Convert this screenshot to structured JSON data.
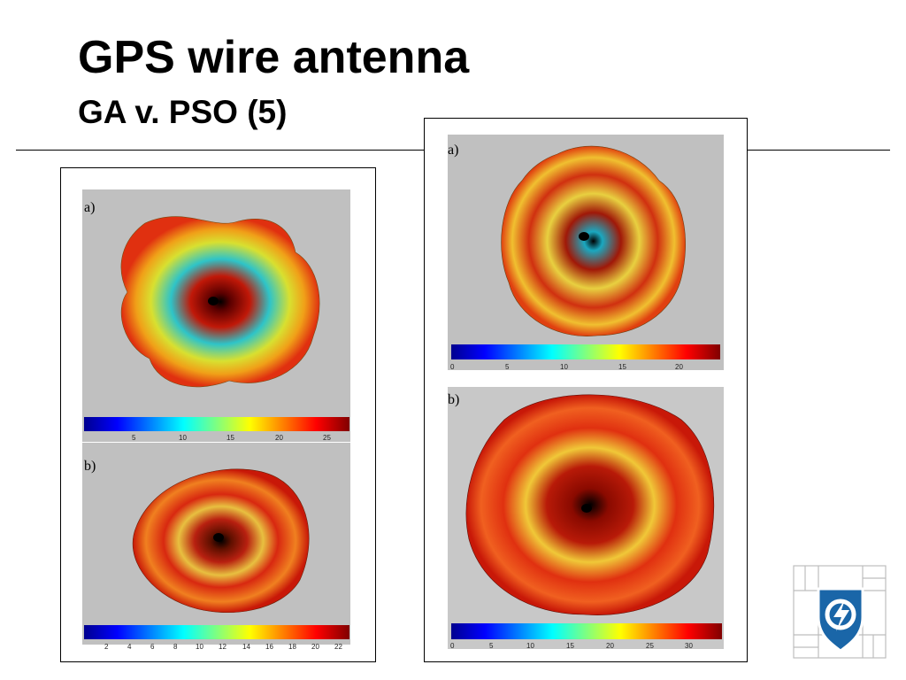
{
  "slide": {
    "title": "GPS wire antenna",
    "subtitle": "GA v. PSO (5)"
  },
  "left_figure": {
    "panel_a": {
      "label": "a)",
      "colorbar_ticks": [
        "5",
        "10",
        "15",
        "20",
        "25"
      ],
      "range": [
        0,
        28
      ]
    },
    "panel_b": {
      "label": "b)",
      "colorbar_ticks": [
        "2",
        "4",
        "6",
        "8",
        "10",
        "12",
        "14",
        "16",
        "18",
        "20",
        "22"
      ],
      "range": [
        0,
        23
      ]
    }
  },
  "right_figure": {
    "panel_a": {
      "label": "a)",
      "colorbar_ticks": [
        "0",
        "5",
        "10",
        "15",
        "20"
      ],
      "range": [
        0,
        24
      ]
    },
    "panel_b": {
      "label": "b)",
      "colorbar_ticks": [
        "0",
        "5",
        "10",
        "15",
        "20",
        "25",
        "30"
      ],
      "range": [
        0,
        34
      ]
    }
  },
  "colors": {
    "plot_background": "#c0c0c0",
    "frame_border": "#000000"
  },
  "logo": {
    "icon": "university-shield-lightning-logo"
  }
}
